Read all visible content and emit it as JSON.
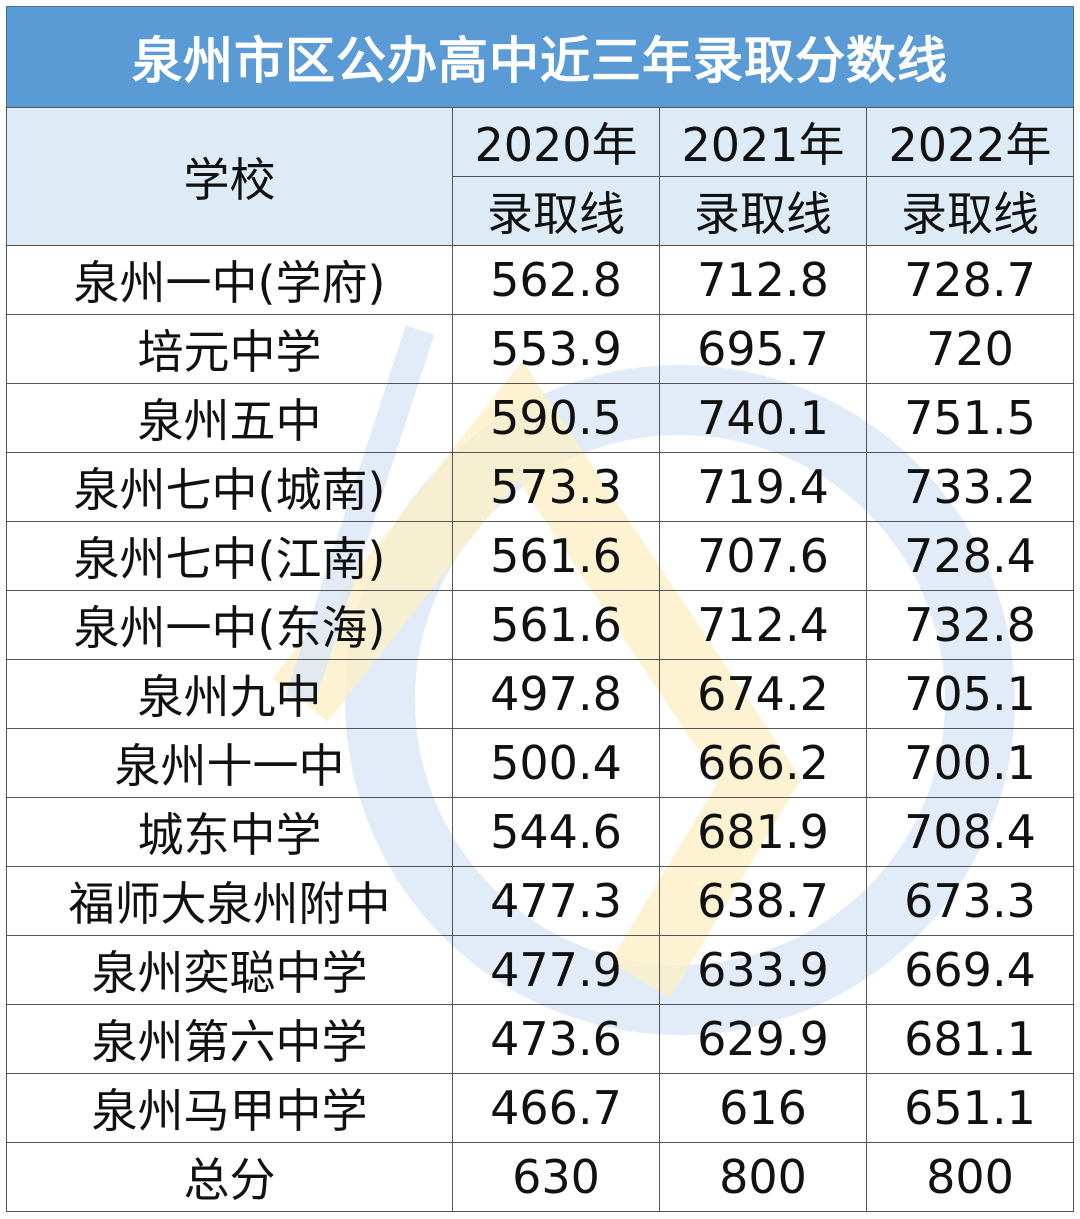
{
  "title": "泉州市区公办高中近三年录取分数线",
  "header": {
    "school_label": "学校",
    "years": [
      "2020年",
      "2021年",
      "2022年"
    ],
    "subheader": [
      "录取线",
      "录取线",
      "录取线"
    ]
  },
  "rows": [
    {
      "school": "泉州一中(学府)",
      "scores": [
        "562.8",
        "712.8",
        "728.7"
      ]
    },
    {
      "school": "培元中学",
      "scores": [
        "553.9",
        "695.7",
        "720"
      ]
    },
    {
      "school": "泉州五中",
      "scores": [
        "590.5",
        "740.1",
        "751.5"
      ]
    },
    {
      "school": "泉州七中(城南)",
      "scores": [
        "573.3",
        "719.4",
        "733.2"
      ]
    },
    {
      "school": "泉州七中(江南)",
      "scores": [
        "561.6",
        "707.6",
        "728.4"
      ]
    },
    {
      "school": "泉州一中(东海)",
      "scores": [
        "561.6",
        "712.4",
        "732.8"
      ]
    },
    {
      "school": "泉州九中",
      "scores": [
        "497.8",
        "674.2",
        "705.1"
      ]
    },
    {
      "school": "泉州十一中",
      "scores": [
        "500.4",
        "666.2",
        "700.1"
      ]
    },
    {
      "school": "城东中学",
      "scores": [
        "544.6",
        "681.9",
        "708.4"
      ]
    },
    {
      "school": "福师大泉州附中",
      "scores": [
        "477.3",
        "638.7",
        "673.3"
      ]
    },
    {
      "school": "泉州奕聪中学",
      "scores": [
        "477.9",
        "633.9",
        "669.4"
      ]
    },
    {
      "school": "泉州第六中学",
      "scores": [
        "473.6",
        "629.9",
        "681.1"
      ]
    },
    {
      "school": "泉州马甲中学",
      "scores": [
        "466.7",
        "616",
        "651.1"
      ]
    },
    {
      "school": "总分",
      "scores": [
        "630",
        "800",
        "800"
      ]
    }
  ],
  "colors": {
    "title_bg": "#5b9bd5",
    "header_bg": "#ddebf7",
    "border": "#555555",
    "watermark_blue": "#c5d9f1",
    "watermark_yellow": "#fde9a9"
  }
}
